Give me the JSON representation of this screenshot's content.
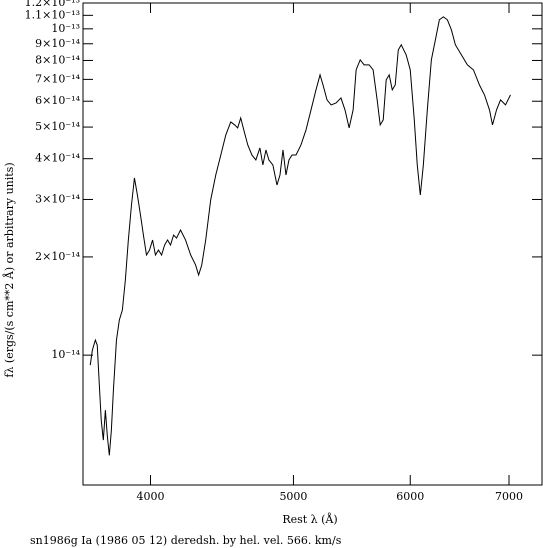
{
  "chart_data": {
    "type": "line",
    "x_label": "Rest λ (Å)",
    "y_label": "fλ (ergs/(s cm**2 Å) or arbitrary units)",
    "caption": "sn1986g Ia (1986 05 12) deredsh. by hel. vel.   566. km/s",
    "xscale": "log",
    "yscale": "log",
    "xlim": [
      3600,
      7370
    ],
    "xticks": [
      4000,
      5000,
      6000,
      7000
    ],
    "ylim": [
      4e-15,
      1.2e-13
    ],
    "yticks": [
      {
        "value": 1e-14,
        "label": "10⁻¹⁴"
      },
      {
        "value": 2e-14,
        "label": "2×10⁻¹⁴"
      },
      {
        "value": 3e-14,
        "label": "3×10⁻¹⁴"
      },
      {
        "value": 4e-14,
        "label": "4×10⁻¹⁴"
      },
      {
        "value": 5e-14,
        "label": "5×10⁻¹⁴"
      },
      {
        "value": 6e-14,
        "label": "6×10⁻¹⁴"
      },
      {
        "value": 7e-14,
        "label": "7×10⁻¹⁴"
      },
      {
        "value": 8e-14,
        "label": "8×10⁻¹⁴"
      },
      {
        "value": 9e-14,
        "label": "9×10⁻¹⁴"
      },
      {
        "value": 1e-13,
        "label": "10⁻¹³"
      },
      {
        "value": 1.1e-13,
        "label": "1.1×10⁻¹³"
      },
      {
        "value": 1.2e-13,
        "label": "1.2×10⁻¹³"
      }
    ],
    "color": "#000000",
    "x": [
      3641,
      3653,
      3670,
      3681,
      3693,
      3704,
      3716,
      3728,
      3739,
      3751,
      3763,
      3775,
      3793,
      3810,
      3828,
      3846,
      3864,
      3883,
      3901,
      3919,
      3938,
      3956,
      3975,
      3994,
      4013,
      4031,
      4050,
      4070,
      4089,
      4108,
      4127,
      4147,
      4166,
      4192,
      4225,
      4259,
      4292,
      4312,
      4333,
      4360,
      4394,
      4429,
      4464,
      4499,
      4534,
      4562,
      4583,
      4605,
      4627,
      4656,
      4686,
      4715,
      4745,
      4767,
      4790,
      4812,
      4842,
      4873,
      4896,
      4919,
      4942,
      4965,
      4989,
      5020,
      5059,
      5099,
      5139,
      5179,
      5212,
      5236,
      5269,
      5303,
      5344,
      5385,
      5419,
      5454,
      5488,
      5514,
      5549,
      5583,
      5627,
      5662,
      5698,
      5725,
      5752,
      5779,
      5806,
      5834,
      5861,
      5889,
      5916,
      5962,
      6000,
      6038,
      6066,
      6095,
      6124,
      6162,
      6201,
      6240,
      6279,
      6319,
      6358,
      6398,
      6438,
      6499,
      6560,
      6622,
      6684,
      6737,
      6790,
      6822,
      6865,
      6908,
      6962,
      7016
    ],
    "values": [
      9.32e-15,
      1.036e-14,
      1.112e-14,
      1.073e-14,
      8.09e-15,
      6.32e-15,
      5.49e-15,
      6.78e-15,
      5.68e-15,
      4.93e-15,
      5.89e-15,
      7.81e-15,
      1.112e-14,
      1.28e-14,
      1.374e-14,
      1.698e-14,
      2.253e-14,
      2.885e-14,
      3.491e-14,
      3.096e-14,
      2.688e-14,
      2.334e-14,
      2.027e-14,
      2.099e-14,
      2.253e-14,
      2.027e-14,
      2.099e-14,
      2.027e-14,
      2.175e-14,
      2.253e-14,
      2.175e-14,
      2.334e-14,
      2.285e-14,
      2.418e-14,
      2.253e-14,
      2.027e-14,
      1.888e-14,
      1.76e-14,
      1.888e-14,
      2.253e-14,
      2.989e-14,
      3.566e-14,
      4.107e-14,
      4.73e-14,
      5.185e-14,
      5.076e-14,
      4.97e-14,
      5.333e-14,
      4.9e-14,
      4.407e-14,
      4.107e-14,
      3.964e-14,
      4.315e-14,
      3.827e-14,
      4.254e-14,
      3.964e-14,
      3.827e-14,
      3.323e-14,
      3.566e-14,
      4.254e-14,
      3.566e-14,
      3.964e-14,
      4.107e-14,
      4.107e-14,
      4.407e-14,
      4.9e-14,
      5.643e-14,
      6.499e-14,
      7.226e-14,
      6.733e-14,
      6.056e-14,
      5.846e-14,
      5.929e-14,
      6.142e-14,
      5.643e-14,
      4.97e-14,
      5.643e-14,
      7.486e-14,
      8.034e-14,
      7.755e-14,
      7.755e-14,
      7.486e-14,
      6.056e-14,
      5.076e-14,
      5.258e-14,
      6.975e-14,
      7.226e-14,
      6.499e-14,
      6.733e-14,
      8.622e-14,
      8.932e-14,
      8.322e-14,
      7.486e-14,
      5.258e-14,
      3.827e-14,
      3.096e-14,
      3.827e-14,
      5.643e-14,
      8.034e-14,
      9.253e-14,
      1.066e-13,
      1.088e-13,
      1.066e-13,
      9.93e-14,
      8.932e-14,
      8.322e-14,
      7.755e-14,
      7.486e-14,
      6.733e-14,
      6.274e-14,
      5.643e-14,
      5.076e-14,
      5.643e-14,
      6.056e-14,
      5.846e-14,
      6.274e-14
    ]
  }
}
